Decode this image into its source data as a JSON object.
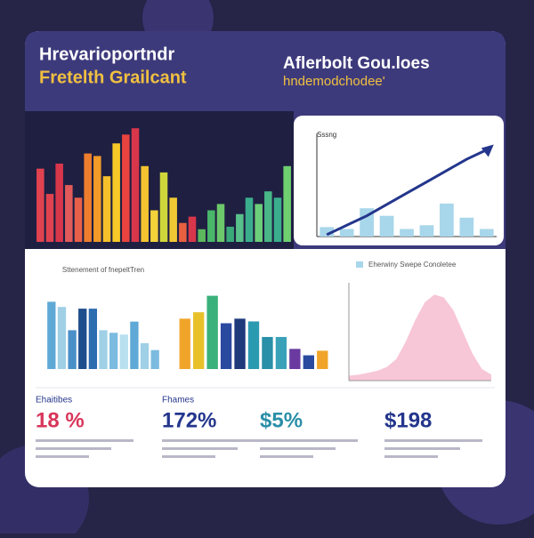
{
  "header": {
    "title_lines": [
      "Hrevarioportndr",
      "Fretelth Grailcant"
    ],
    "right_title": "Aflerbolt Gou.loes",
    "right_subtitle": "hndemodchodee'"
  },
  "chart_data": [
    {
      "type": "bar",
      "values": [
        58,
        38,
        62,
        45,
        35,
        70,
        68,
        52,
        78,
        85,
        90,
        60,
        25,
        55,
        35,
        15,
        20,
        10,
        25,
        30,
        12,
        22,
        35,
        30,
        40,
        35,
        60
      ],
      "colors": [
        "#e0434f",
        "#e0434f",
        "#d8364a",
        "#e35a5a",
        "#e85f4a",
        "#ef7d2e",
        "#f29b28",
        "#f5c02a",
        "#f6c928",
        "#e8433e",
        "#d8364a",
        "#f4c430",
        "#f3d23a",
        "#cfd63a",
        "#f0c834",
        "#e86040",
        "#d8364a",
        "#5cb85c",
        "#49b66a",
        "#6cc86a",
        "#3aa97a",
        "#58c08a",
        "#3aae8c",
        "#6ccf7a",
        "#48b686",
        "#3aae8c",
        "#6fd070"
      ],
      "ylim": [
        0,
        100
      ]
    },
    {
      "type": "combo",
      "title": "Sssng",
      "ylim": [
        0,
        100
      ],
      "series": [
        {
          "kind": "bar",
          "color": "#a8d6ea",
          "values": [
            10,
            8,
            30,
            22,
            8,
            12,
            35,
            20,
            8
          ]
        },
        {
          "kind": "line",
          "color": "#24368c",
          "values": [
            2,
            12,
            22,
            34,
            46,
            58,
            70,
            82,
            92
          ]
        }
      ]
    },
    {
      "type": "bar",
      "title": "Sttenement of fnepeltTren",
      "color": "#6fb5d8",
      "ylim": [
        0,
        100
      ],
      "values": [
        78,
        72,
        45,
        70,
        70,
        45,
        42,
        40,
        55,
        30,
        22
      ],
      "colors": [
        "#5fa9d6",
        "#9fd0e6",
        "#4a8fc8",
        "#1f4e8c",
        "#2c6cb0",
        "#9fd0e6",
        "#7bbbe0",
        "#b8e0ee",
        "#5fa9d6",
        "#9fd0e6",
        "#7bbbe0"
      ]
    },
    {
      "type": "bar",
      "ylim": [
        0,
        100
      ],
      "values": [
        55,
        62,
        80,
        50,
        55,
        52,
        35,
        35,
        22,
        15,
        20
      ],
      "colors": [
        "#f0a52a",
        "#e8c12a",
        "#3ab07a",
        "#2a4aa0",
        "#1f3a7a",
        "#2a9ab0",
        "#2a8fa8",
        "#3aa2b8",
        "#6a3aa0",
        "#2a4aa0",
        "#f0a52a"
      ]
    },
    {
      "type": "area",
      "legend": "Eherwiny Swepe Conoletee",
      "legend_color": "#a8d6ea",
      "color": "#f6bcd0",
      "ylim": [
        0,
        100
      ],
      "values": [
        5,
        6,
        8,
        10,
        14,
        22,
        40,
        62,
        80,
        88,
        85,
        72,
        50,
        28,
        12,
        6
      ]
    }
  ],
  "kpis": [
    {
      "label": "Ehaitibes",
      "value": "18 %",
      "color": "#d8365a"
    },
    {
      "label": "Fhames",
      "value": "172%",
      "color": "#24368c"
    },
    {
      "label": "",
      "value": "$5%",
      "color": "#2a8fa8"
    },
    {
      "label": "",
      "value": "$198",
      "color": "#24368c"
    }
  ]
}
